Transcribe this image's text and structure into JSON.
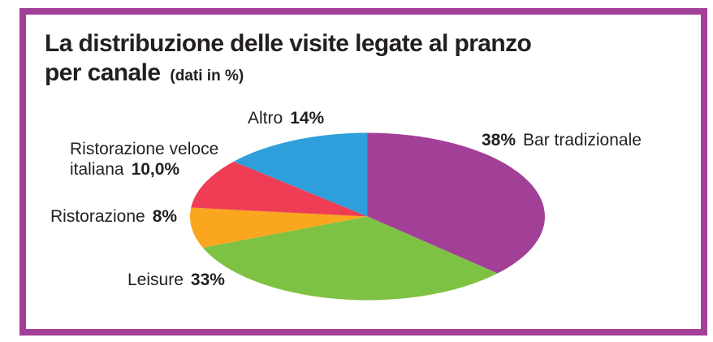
{
  "frame": {
    "border_color": "#A23F97",
    "background": "#FFFFFF"
  },
  "title": {
    "line1": "La distribuzione delle visite legate al pranzo",
    "line2": "per canale",
    "note": "(dati in %)",
    "color": "#231F20"
  },
  "chart_data": {
    "type": "pie",
    "shape": "ellipse",
    "title": "La distribuzione delle visite legate al pranzo per canale",
    "units": "dati in %",
    "start_angle_deg": 0,
    "direction": "clockwise",
    "legend_position": "none",
    "slices": [
      {
        "label": "Bar tradizionale",
        "value": 38,
        "display_value": "38%",
        "color": "#A23F97",
        "label_position": "upper-right"
      },
      {
        "label": "Leisure",
        "value": 33,
        "display_value": "33%",
        "color": "#7DC242",
        "label_position": "lower-left"
      },
      {
        "label": "Ristorazione",
        "value": 8,
        "display_value": "8%",
        "color": "#FAA61E",
        "label_position": "left"
      },
      {
        "label": "Ristorazione veloce italiana",
        "value": 10,
        "display_value": "10,0%",
        "color": "#EE3D54",
        "label_position": "upper-left"
      },
      {
        "label": "Altro",
        "value": 14,
        "display_value": "14%",
        "color": "#2F9FDB",
        "label_position": "top"
      }
    ]
  }
}
